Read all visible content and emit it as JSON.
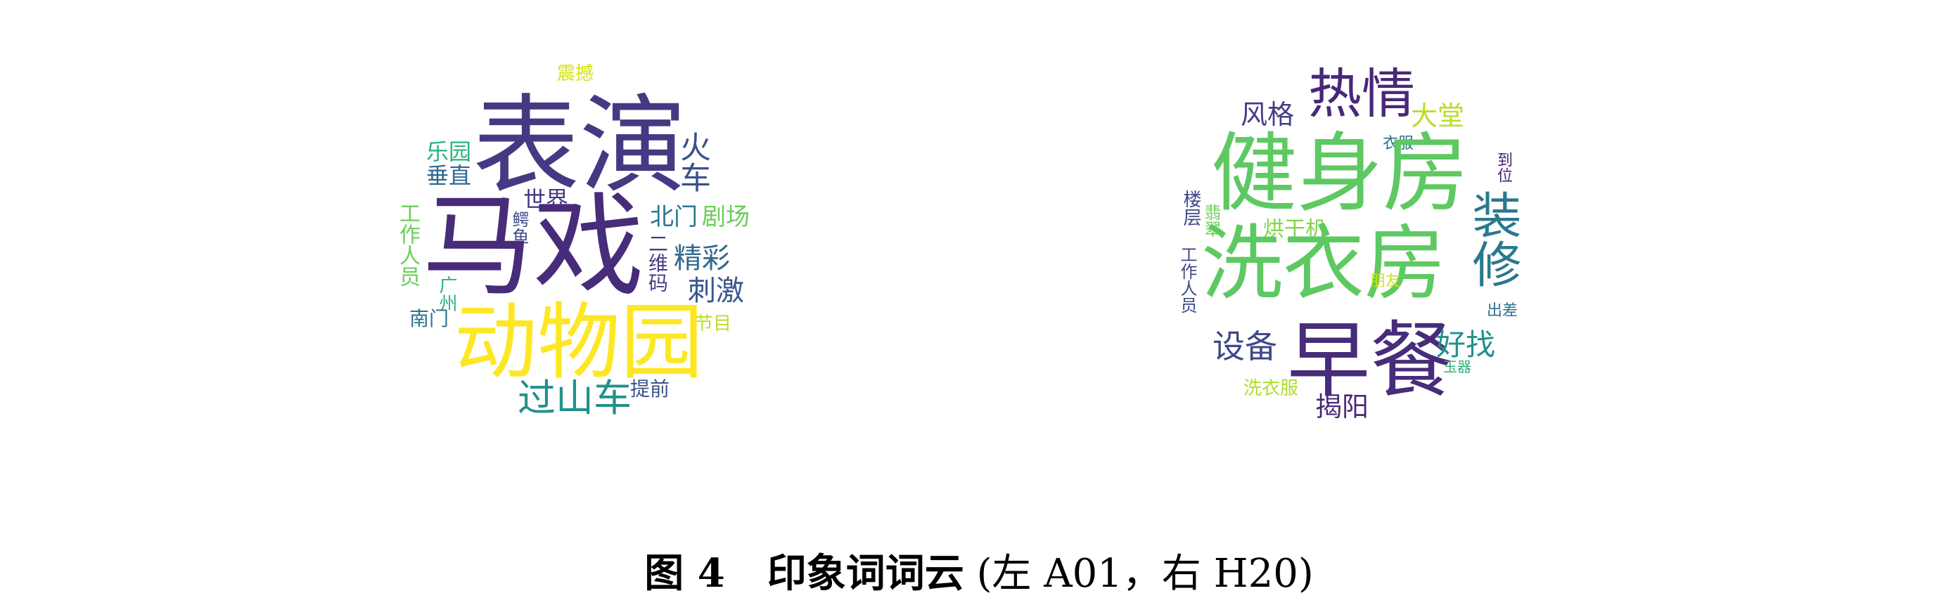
{
  "word_cloud_left": {
    "words": [
      {
        "text": "震撼",
        "color": "#d2e21b"
      },
      {
        "text": "表演",
        "color": "#443a83"
      },
      {
        "text": "火车",
        "color": "#3b518b"
      },
      {
        "text": "乐园",
        "color": "#2db27d"
      },
      {
        "text": "垂直",
        "color": "#31688e"
      },
      {
        "text": "世界",
        "color": "#443a83"
      },
      {
        "text": "鳄鱼",
        "color": "#3e4a89"
      },
      {
        "text": "工作人员",
        "color": "#6ccd5a"
      },
      {
        "text": "马戏",
        "color": "#472c7a"
      },
      {
        "text": "北门",
        "color": "#2a768e"
      },
      {
        "text": "剧场",
        "color": "#6ccd5a"
      },
      {
        "text": "精彩",
        "color": "#31688e"
      },
      {
        "text": "二维码",
        "color": "#433e85"
      },
      {
        "text": "刺激",
        "color": "#39568c"
      },
      {
        "text": "广州",
        "color": "#2db27d"
      },
      {
        "text": "南门",
        "color": "#2c728e"
      },
      {
        "text": "动物园",
        "color": "#fde725"
      },
      {
        "text": "节目",
        "color": "#b8de29"
      },
      {
        "text": "过山车",
        "color": "#21918c"
      },
      {
        "text": "提前",
        "color": "#3b528b"
      }
    ]
  },
  "word_cloud_right": {
    "words": [
      {
        "text": "热情",
        "color": "#482878"
      },
      {
        "text": "风格",
        "color": "#433e85"
      },
      {
        "text": "大堂",
        "color": "#b8de29"
      },
      {
        "text": "衣服",
        "color": "#2c728e"
      },
      {
        "text": "到位",
        "color": "#482173"
      },
      {
        "text": "健身房",
        "color": "#5ec962"
      },
      {
        "text": "楼层",
        "color": "#3f4889"
      },
      {
        "text": "翡翠",
        "color": "#6ccd5a"
      },
      {
        "text": "烘干机",
        "color": "#84d44b"
      },
      {
        "text": "工作人员",
        "color": "#3e4a89"
      },
      {
        "text": "洗衣房",
        "color": "#5ec962"
      },
      {
        "text": "装修",
        "color": "#2a788e"
      },
      {
        "text": "朋友",
        "color": "#d2e21b"
      },
      {
        "text": "出差",
        "color": "#2c728e"
      },
      {
        "text": "设备",
        "color": "#3f4889"
      },
      {
        "text": "早餐",
        "color": "#472c7a"
      },
      {
        "text": "好找",
        "color": "#21918c"
      },
      {
        "text": "玉器",
        "color": "#2db27d"
      },
      {
        "text": "洗衣服",
        "color": "#addc30"
      },
      {
        "text": "揭阳",
        "color": "#482878"
      }
    ]
  },
  "caption": {
    "label": "图 4",
    "title": "印象词词云",
    "detail_open": " (左 ",
    "detail_left_id": "A01",
    "detail_sep": "，右 ",
    "detail_right_id": "H20",
    "detail_close": ")"
  }
}
